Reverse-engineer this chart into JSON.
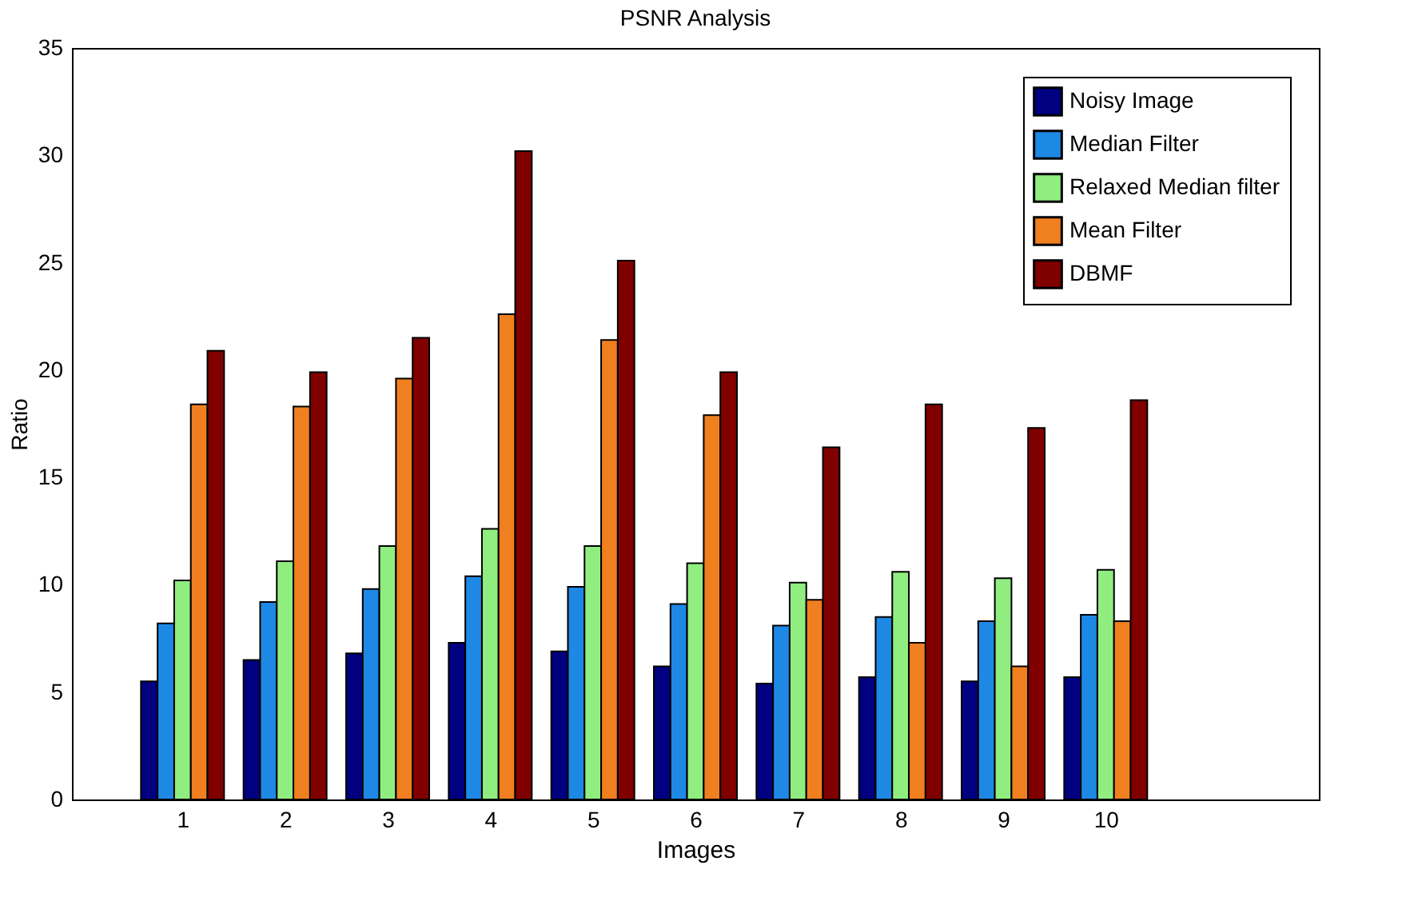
{
  "chart_data": {
    "type": "bar",
    "title": "PSNR Analysis",
    "xlabel": "Images",
    "ylabel": "Ratio",
    "x": [
      1,
      2,
      3,
      4,
      5,
      6,
      7,
      8,
      9,
      10
    ],
    "xlim": [
      0,
      12
    ],
    "xticks": [
      1,
      2,
      3,
      4,
      5,
      6,
      7,
      8,
      9,
      10
    ],
    "ylim": [
      0,
      35
    ],
    "yticks": [
      0,
      5,
      10,
      15,
      20,
      25,
      30,
      35
    ],
    "grid": false,
    "legend": "top right",
    "series": [
      {
        "name": "Noisy Image",
        "color": "#000080",
        "values": [
          5.5,
          6.5,
          6.8,
          7.3,
          6.9,
          6.2,
          5.4,
          5.7,
          5.5,
          5.7
        ]
      },
      {
        "name": "Median Filter",
        "color": "#1e88e5",
        "values": [
          8.2,
          9.2,
          9.8,
          10.4,
          9.9,
          9.1,
          8.1,
          8.5,
          8.3,
          8.6
        ]
      },
      {
        "name": "Relaxed Median filter",
        "color": "#90ee80",
        "values": [
          10.2,
          11.1,
          11.8,
          12.6,
          11.8,
          11.0,
          10.1,
          10.6,
          10.3,
          10.7
        ]
      },
      {
        "name": "Mean Filter",
        "color": "#f07f20",
        "values": [
          18.4,
          18.3,
          19.6,
          22.6,
          21.4,
          17.9,
          9.3,
          7.3,
          6.2,
          8.3
        ]
      },
      {
        "name": "DBMF",
        "color": "#800000",
        "values": [
          20.9,
          19.9,
          21.5,
          30.2,
          25.1,
          19.9,
          16.4,
          18.4,
          17.3,
          18.6
        ]
      }
    ]
  }
}
